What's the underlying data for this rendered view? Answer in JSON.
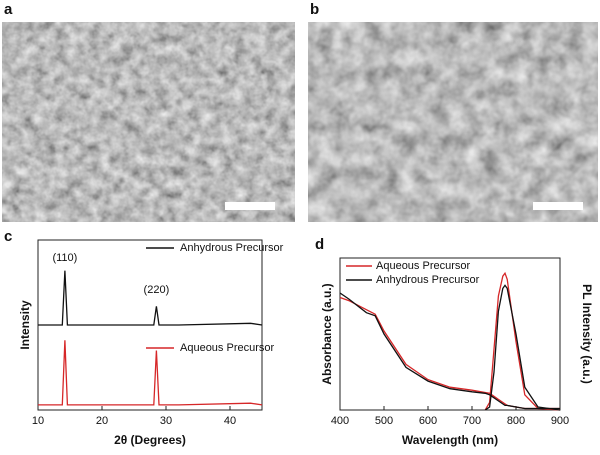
{
  "images": [
    {
      "label": "a"
    },
    {
      "label": "b"
    }
  ],
  "chart_data": [
    {
      "type": "line",
      "panel": "c",
      "x_label": "2θ (Degrees)",
      "y_label": "Intensity",
      "xlim": [
        10,
        45
      ],
      "xticks": [
        10,
        20,
        30,
        40
      ],
      "ylim": [
        0,
        100
      ],
      "x": [
        10,
        13.8,
        14.2,
        14.6,
        20,
        28.1,
        28.5,
        28.9,
        32,
        43.2,
        45
      ],
      "annotations": [
        "(110)",
        "(220)"
      ],
      "series": [
        {
          "name": "Anhydrous Precursor",
          "color": "#111111",
          "values": [
            50,
            50,
            82,
            50,
            50,
            50,
            61,
            50,
            50,
            51,
            50
          ]
        },
        {
          "name": "Aqueous Precursor",
          "color": "#d62728",
          "values": [
            3,
            3,
            41,
            3,
            3,
            3,
            35,
            3,
            3,
            4,
            3
          ]
        }
      ]
    },
    {
      "type": "line",
      "panel": "d",
      "x_label": "Wavelength (nm)",
      "y_label": "Absorbance (a.u.)",
      "y2_label": "PL Intensity (a.u.)",
      "xlim": [
        400,
        900
      ],
      "xticks": [
        400,
        500,
        600,
        700,
        800,
        900
      ],
      "ylim": [
        0,
        100
      ],
      "y2lim": [
        0,
        100
      ],
      "x": [
        400,
        420,
        460,
        480,
        500,
        550,
        600,
        650,
        700,
        730,
        740,
        750,
        760,
        770,
        775,
        780,
        800,
        820,
        850,
        900
      ],
      "series": [
        {
          "name": "Aqueous Precursor",
          "color": "#d62728",
          "values": [
            74,
            72,
            66,
            63,
            52,
            30,
            20,
            15,
            13,
            11.5,
            11,
            9,
            7,
            5,
            4,
            3,
            2,
            1,
            1,
            1
          ],
          "pl_values": [
            null,
            null,
            null,
            null,
            null,
            null,
            null,
            null,
            null,
            0,
            5,
            40,
            75,
            88,
            90,
            86,
            45,
            10,
            1,
            0
          ]
        },
        {
          "name": "Anhydrous Precursor",
          "color": "#111111",
          "values": [
            77,
            73,
            64,
            62,
            50,
            28,
            19,
            14,
            12,
            11,
            10,
            8,
            6,
            4,
            3,
            3,
            2,
            1,
            1,
            1
          ],
          "pl_values": [
            null,
            null,
            null,
            null,
            null,
            null,
            null,
            null,
            null,
            0,
            2,
            25,
            65,
            80,
            82,
            80,
            50,
            15,
            2,
            0
          ]
        }
      ]
    }
  ]
}
